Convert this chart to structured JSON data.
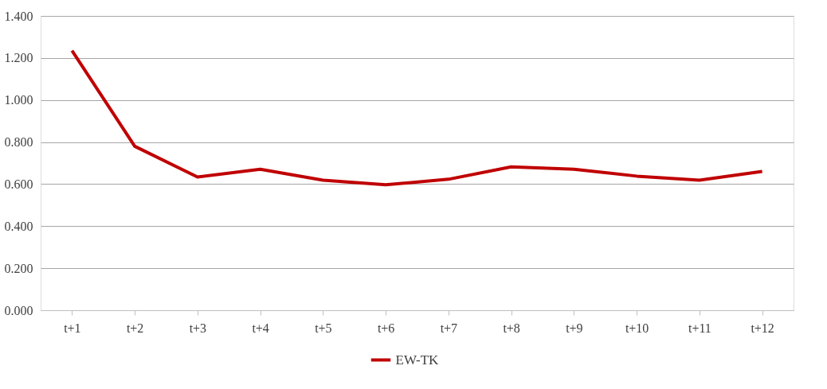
{
  "chart_data": {
    "type": "line",
    "categories": [
      "t+1",
      "t+2",
      "t+3",
      "t+4",
      "t+5",
      "t+6",
      "t+7",
      "t+8",
      "t+9",
      "t+10",
      "t+11",
      "t+12"
    ],
    "series": [
      {
        "name": "EW-TK",
        "color": "#c00000",
        "values": [
          1.235,
          0.78,
          0.634,
          0.671,
          0.619,
          0.597,
          0.623,
          0.682,
          0.671,
          0.638,
          0.619,
          0.66
        ]
      }
    ],
    "ylim": [
      0,
      1.4
    ],
    "yticks": [
      {
        "value": 0,
        "label": "0.000"
      },
      {
        "value": 0.2,
        "label": "0.200"
      },
      {
        "value": 0.4,
        "label": "0.400"
      },
      {
        "value": 0.6,
        "label": "0.600"
      },
      {
        "value": 0.8,
        "label": "0.800"
      },
      {
        "value": 1.0,
        "label": "1.000"
      },
      {
        "value": 1.2,
        "label": "1.200"
      },
      {
        "value": 1.4,
        "label": "1.400"
      }
    ],
    "grid": "y",
    "legend": "bottom",
    "marker": "none",
    "line_style": "solid"
  }
}
